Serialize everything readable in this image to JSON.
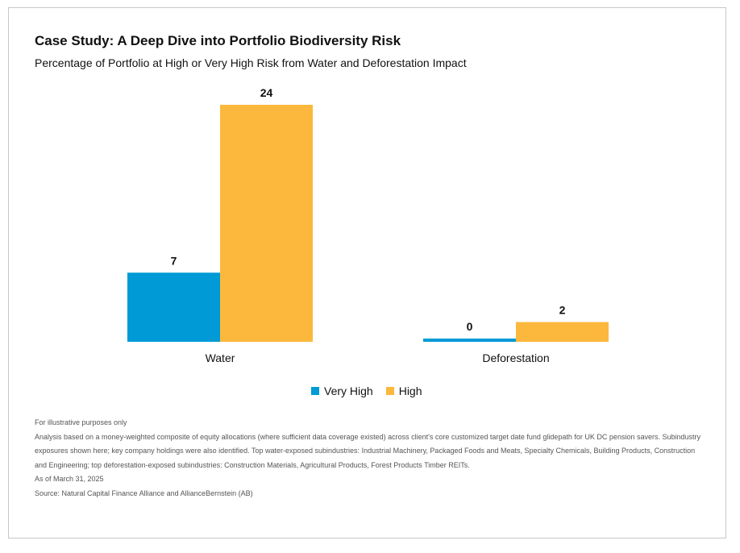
{
  "chart_data": {
    "type": "bar",
    "title": "Case Study: A Deep Dive into Portfolio Biodiversity Risk",
    "subtitle": "Percentage of Portfolio at High or Very High Risk from Water and Deforestation Impact",
    "categories": [
      "Water",
      "Deforestation"
    ],
    "series": [
      {
        "name": "Very High",
        "values": [
          7,
          0
        ],
        "color": "#009ad6"
      },
      {
        "name": "High",
        "values": [
          24,
          2
        ],
        "color": "#fcb83c"
      }
    ],
    "ylim": [
      0,
      24
    ],
    "grid": false,
    "legend_position": "bottom-center",
    "xlabel": "",
    "ylabel": ""
  },
  "notes": {
    "illustrative": "For illustrative purposes only",
    "analysis": "Analysis based on a money-weighted composite of equity allocations (where sufficient data coverage existed) across client's core customized target date fund glidepath for UK DC pension savers. Subindustry exposures shown here; key company holdings were also identified. Top water-exposed subindustries: Industrial Machinery, Packaged Foods and Meats, Specialty Chemicals, Building Products, Construction and Engineering; top deforestation-exposed subindustries: Construction Materials, Agricultural Products, Forest Products Timber REITs.",
    "as_of": "As of March 31, 2025",
    "source": "Source: Natural Capital Finance Alliance and AllianceBernstein (AB)"
  }
}
